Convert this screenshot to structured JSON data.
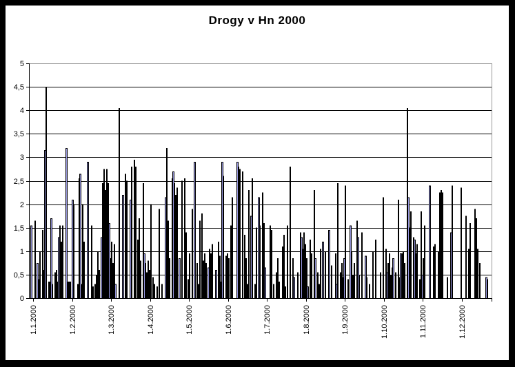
{
  "window": {
    "background": "#FFFFFF",
    "frame_color": "#000000"
  },
  "chart_data": {
    "type": "bar",
    "title": "Drogy v Hn 2000",
    "xlabel": "",
    "ylabel": "",
    "ylim": [
      0,
      5
    ],
    "y_tick_interval": 0.5,
    "y_tick_labels": [
      "0",
      "0,5",
      "1",
      "1,5",
      "2",
      "2,5",
      "3",
      "3,5",
      "4",
      "4,5",
      "5"
    ],
    "x_tick_labels": [
      "1.1.2000",
      "1.2.2000",
      "1.3.2000",
      "1.4.2000",
      "1.5.2000",
      "1.6.2000",
      "1.7.2000",
      "1.8.2000",
      "1.9.2000",
      "1.10.2000",
      "1.11.2000",
      "1.12.2000"
    ],
    "x_unit": "day",
    "n_points": 366,
    "month_order": [
      "jan",
      "feb",
      "mar",
      "apr",
      "may",
      "jun",
      "jul",
      "aug",
      "sep",
      "oct",
      "nov",
      "dec"
    ],
    "month_days": [
      31,
      29,
      31,
      30,
      31,
      30,
      31,
      31,
      30,
      31,
      30,
      31
    ],
    "grid": "horizontal",
    "legend": "none",
    "colors": {
      "bar_fill": "#9898E2",
      "bar_outline": "#000000",
      "gridline": "#000000",
      "plot_border": "#969696",
      "axis": "#000000",
      "label": "#000000"
    },
    "series": [
      {
        "name": "Drogy v Hn 2000",
        "values_by_month": {
          "jan": [
            1.55,
            0,
            0,
            1.65,
            0,
            0.75,
            0.4,
            1,
            0,
            1.45,
            0.6,
            3.15,
            4.5,
            0,
            0.35,
            0.35,
            1.7,
            0.3,
            0,
            0.55,
            0.6,
            0.35,
            1.3,
            1.55,
            1.2,
            1.55,
            0,
            0,
            3.2,
            0.35,
            0.35
          ],
          "feb": [
            0.35,
            0,
            2.1,
            2,
            0,
            0,
            0.3,
            2.55,
            2.65,
            0.3,
            2,
            1.2,
            0,
            0,
            2.9,
            0,
            0,
            1.55,
            0.25,
            0,
            0.3,
            0.5,
            1,
            0.6,
            0,
            1.3,
            2.45,
            2.75,
            2.3
          ],
          "mar": [
            2.75,
            2.45,
            1.6,
            0.85,
            1.2,
            0.75,
            1.15,
            0.3,
            0,
            0,
            4.05,
            0,
            0,
            2.2,
            0,
            2.65,
            2.5,
            0,
            0,
            2.1,
            2.8,
            0,
            2.95,
            2.8,
            0,
            1.25,
            1.7,
            0.8,
            0,
            2.45,
            0.95
          ],
          "apr": [
            0.75,
            0.55,
            0.8,
            0.6,
            2,
            0,
            0.45,
            0.3,
            0,
            0.25,
            0,
            1.9,
            0,
            0.3,
            0,
            0,
            2.15,
            3.2,
            1.65,
            0.85,
            0,
            2.55,
            2.7,
            2.45,
            2.2,
            2.35,
            0,
            0.85,
            0,
            2.5
          ],
          "may": [
            0,
            2.55,
            1.4,
            0,
            0.4,
            0.95,
            0,
            1.9,
            0,
            2.9,
            0,
            0.75,
            0.3,
            1.65,
            0,
            1.8,
            0.8,
            0.95,
            0.75,
            0,
            0.65,
            1.05,
            0.95,
            1.15,
            0,
            0,
            0.6,
            0,
            1.2,
            0.9,
            0.35
          ],
          "jun": [
            2.9,
            2.6,
            0,
            0.9,
            0.95,
            0.85,
            0,
            1.55,
            2.15,
            0,
            0,
            0,
            2.9,
            2.8,
            2.75,
            0,
            2.7,
            0,
            1.35,
            0.85,
            0.3,
            2.3,
            0,
            1.75,
            2.55,
            0,
            0.3,
            1.5,
            0,
            2.15
          ],
          "jul": [
            1.55,
            0,
            2.25,
            1.6,
            0.65,
            0,
            0,
            0,
            1.55,
            1.45,
            0,
            0.3,
            0,
            0.55,
            0.85,
            0.35,
            0,
            0,
            1.1,
            1.35,
            0.25,
            0,
            1.55,
            0,
            2.8,
            0,
            0.85,
            0.45,
            0,
            0,
            0.55
          ],
          "aug": [
            0,
            1.4,
            1.3,
            1.05,
            1.4,
            1.15,
            0.85,
            0.25,
            0,
            1.25,
            0.95,
            0,
            2.3,
            0.85,
            0,
            0.55,
            0.3,
            1.05,
            0,
            1.2,
            0,
            1,
            0,
            0,
            1.45,
            0,
            0.7,
            0,
            0,
            0.95,
            0.3
          ],
          "sep": [
            2.45,
            0,
            0.55,
            0.75,
            0.45,
            0.85,
            2.4,
            0,
            0.4,
            0,
            1.55,
            1,
            0.5,
            0.75,
            0,
            1.65,
            1.3,
            0.5,
            0,
            1.4,
            0,
            0,
            0.9,
            0.45,
            0,
            0.3,
            0,
            0,
            1,
            0
          ],
          "oct": [
            1.25,
            0,
            0,
            0,
            0.55,
            0,
            2.15,
            0,
            1.05,
            0.55,
            0.75,
            0.95,
            0.5,
            0.65,
            0.85,
            0,
            0.55,
            0,
            2.1,
            0.45,
            0.95,
            0.95,
            1,
            0.75,
            0,
            4.05,
            2.15,
            1.5,
            1.85,
            0,
            1.3
          ],
          "nov": [
            1.25,
            0.95,
            1.15,
            0,
            0.4,
            1.85,
            0.5,
            0.85,
            1.55,
            0,
            0,
            0,
            2.4,
            0,
            0,
            1.1,
            1.15,
            0,
            0,
            1,
            2.25,
            2.3,
            2.25,
            0,
            0,
            0,
            0.45,
            0,
            0,
            1.4
          ],
          "dec": [
            2.4,
            0,
            0,
            0,
            0,
            0,
            0,
            2.35,
            0,
            0,
            0,
            1.75,
            0,
            1.05,
            1.6,
            0,
            0,
            0,
            1.9,
            1.7,
            1.05,
            0,
            0.75,
            0,
            0,
            0,
            0,
            0.45,
            0.4,
            0,
            0
          ]
        }
      }
    ]
  }
}
